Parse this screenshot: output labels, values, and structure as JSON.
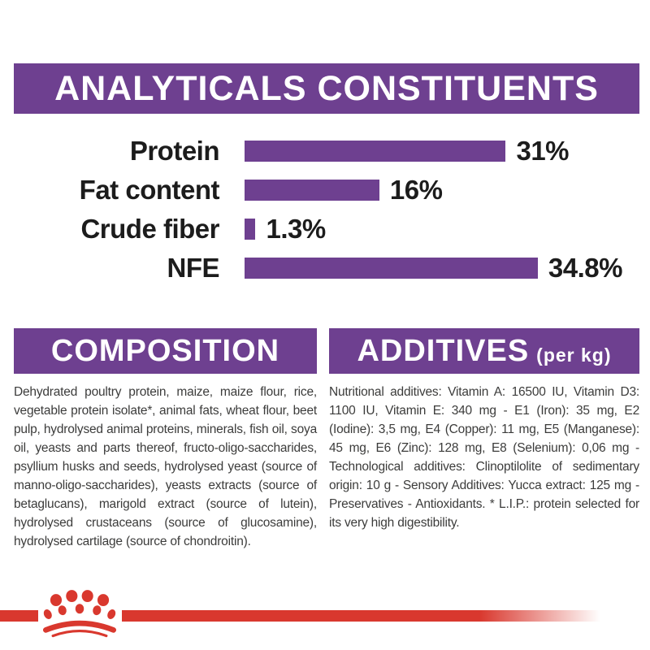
{
  "colors": {
    "purple": "#6e4090",
    "red": "#d9382e",
    "label_color": "#1c1c1c",
    "body_color": "#3c3c3b"
  },
  "header": {
    "title": "ANALYTICALS CONSTITUENTS"
  },
  "chart_data": {
    "type": "bar",
    "orientation": "horizontal",
    "categories": [
      "Protein",
      "Fat content",
      "Crude fiber",
      "NFE"
    ],
    "values": [
      31,
      16,
      1.3,
      34.8
    ],
    "value_labels": [
      "31%",
      "16%",
      "1.3%",
      "34.8%"
    ],
    "xlim": [
      0,
      36
    ],
    "bar_color": "#6e4090",
    "title": "ANALYTICALS CONSTITUENTS",
    "xlabel": "",
    "ylabel": ""
  },
  "composition": {
    "title": "COMPOSITION",
    "body": "Dehydrated poultry protein, maize, maize flour, rice, vegetable protein isolate*, animal fats, wheat flour, beet pulp, hydrolysed animal proteins, minerals, fish oil, soya oil, yeasts and parts thereof, fructo-oligo-saccharides, psyllium husks and seeds, hydrolysed yeast (source of manno-oligo-saccharides), yeasts extracts (source of betaglucans), marigold extract (source of lutein), hydrolysed crustaceans (source of glucosamine), hydrolysed cartilage (source of chondroitin)."
  },
  "additives": {
    "title": "ADDITIVES",
    "title_suffix": "(per kg)",
    "body": "Nutritional additives: Vitamin A: 16500 IU, Vitamin D3: 1100 IU, Vitamin E: 340 mg - E1 (Iron): 35 mg, E2 (Iodine): 3,5 mg, E4 (Copper): 11 mg, E5 (Manganese): 45 mg, E6 (Zinc): 128 mg, E8 (Selenium): 0,06 mg - Technological additives: Clinoptilolite of sedimentary origin: 10 g - Sensory Additives: Yucca extract: 125 mg - Preservatives - Antioxidants. * L.I.P.: protein selected for its very high digestibility."
  },
  "footer": {
    "logo": "royal-canin-crown"
  }
}
